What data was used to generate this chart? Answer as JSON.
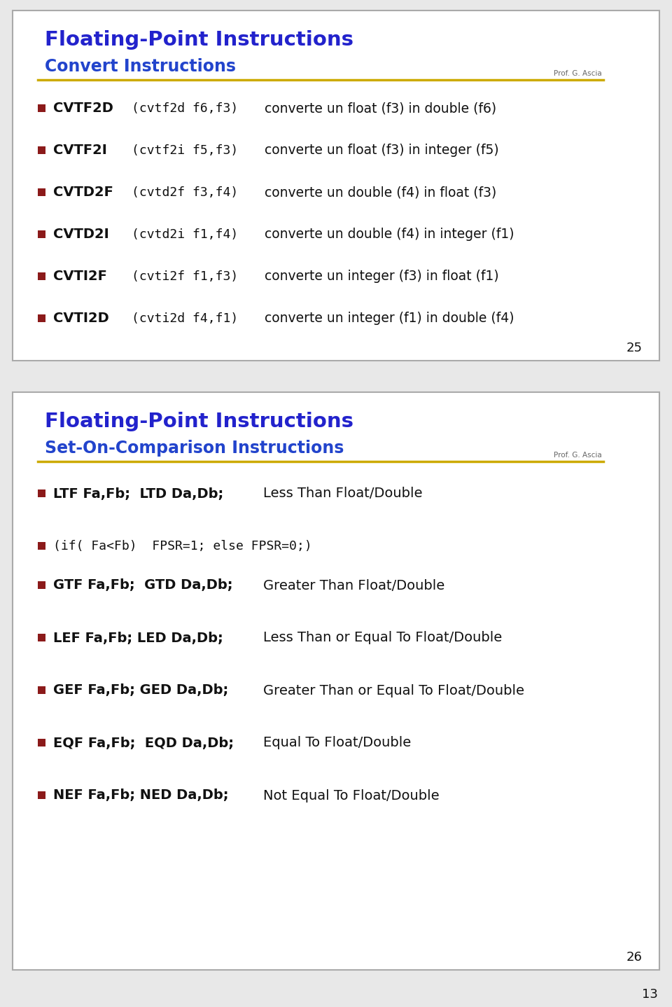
{
  "bg_color": "#e8e8e8",
  "slide_bg": "#ffffff",
  "slide_border": "#aaaaaa",
  "title_color": "#2222cc",
  "subtitle_color": "#2244cc",
  "bullet_color": "#8b1a1a",
  "text_color": "#111111",
  "line_color": "#ccaa00",
  "professor": "Prof. G. Ascia",
  "slide1": {
    "title": "Floating-Point Instructions",
    "subtitle": "Convert Instructions",
    "page_num": "25",
    "items": [
      {
        "bold": "CVTF2D",
        "code": "(cvtf2d f6,f3)",
        "desc": "converte un float (f3) in double (f6)"
      },
      {
        "bold": "CVTF2I",
        "code": "(cvtf2i f5,f3)",
        "desc": "converte un float (f3) in integer (f5)"
      },
      {
        "bold": "CVTD2F",
        "code": "(cvtd2f f3,f4)",
        "desc": "converte un double (f4) in float (f3)"
      },
      {
        "bold": "CVTD2I",
        "code": "(cvtd2i f1,f4)",
        "desc": "converte un double (f4) in integer (f1)"
      },
      {
        "bold": "CVTI2F",
        "code": "(cvti2f f1,f3)",
        "desc": "converte un integer (f3) in float (f1)"
      },
      {
        "bold": "CVTI2D",
        "code": "(cvti2d f4,f1)",
        "desc": "converte un integer (f1) in double (f4)"
      }
    ]
  },
  "slide2": {
    "title": "Floating-Point Instructions",
    "subtitle": "Set-On-Comparison Instructions",
    "page_num": "26",
    "items": [
      {
        "type": "normal",
        "bold_part": "LTF Fa,Fb;  LTD Da,Db;",
        "plain_part": "Less Than Float/Double",
        "indent": 300
      },
      {
        "type": "code",
        "text": "(if( Fa<Fb)  FPSR=1; else FPSR=0;)"
      },
      {
        "type": "gap"
      },
      {
        "type": "normal",
        "bold_part": "GTF Fa,Fb;  GTD Da,Db;",
        "plain_part": "Greater Than Float/Double",
        "indent": 300
      },
      {
        "type": "normal",
        "bold_part": "LEF Fa,Fb; LED Da,Db;",
        "plain_part": "Less Than or Equal To Float/Double",
        "indent": 300
      },
      {
        "type": "normal",
        "bold_part": "GEF Fa,Fb; GED Da,Db;",
        "plain_part": "Greater Than or Equal To Float/Double",
        "indent": 300
      },
      {
        "type": "normal",
        "bold_part": "EQF Fa,Fb;  EQD Da,Db;",
        "plain_part": "Equal To Float/Double",
        "indent": 300
      },
      {
        "type": "normal",
        "bold_part": "NEF Fa,Fb; NED Da,Db;",
        "plain_part": "Not Equal To Float/Double",
        "indent": 300
      }
    ]
  },
  "page_number": "13"
}
